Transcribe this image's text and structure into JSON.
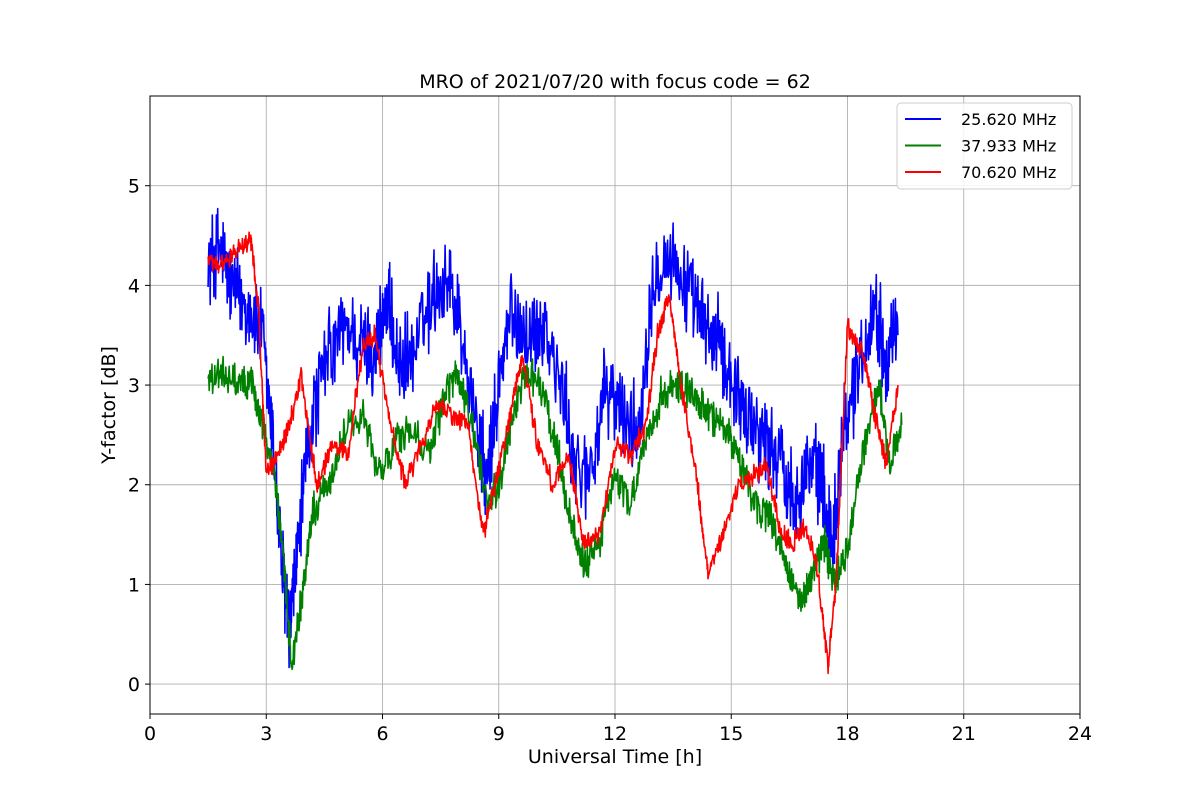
{
  "chart_data": {
    "type": "line",
    "title": "MRO of 2021/07/20 with focus code = 62",
    "xlabel": "Universal Time [h]",
    "ylabel": "Y-factor [dB]",
    "xlim": [
      0,
      24
    ],
    "ylim": [
      -0.3,
      5.9
    ],
    "xticks": [
      0,
      3,
      6,
      9,
      12,
      15,
      18,
      21,
      24
    ],
    "yticks": [
      0,
      1,
      2,
      3,
      4,
      5
    ],
    "grid": true,
    "legend_position": "top-right",
    "series": [
      {
        "name": "25.620 MHz",
        "color": "#0000ff",
        "points": [
          [
            1.5,
            4.2
          ],
          [
            1.8,
            4.4
          ],
          [
            2.1,
            4.0
          ],
          [
            2.5,
            3.8
          ],
          [
            2.9,
            3.5
          ],
          [
            3.2,
            2.3
          ],
          [
            3.45,
            1.0
          ],
          [
            3.6,
            0.5
          ],
          [
            3.8,
            1.3
          ],
          [
            4.1,
            2.5
          ],
          [
            4.5,
            3.2
          ],
          [
            5.0,
            3.6
          ],
          [
            5.5,
            3.4
          ],
          [
            5.8,
            3.3
          ],
          [
            6.1,
            3.9
          ],
          [
            6.4,
            3.2
          ],
          [
            6.8,
            3.3
          ],
          [
            7.3,
            3.9
          ],
          [
            7.7,
            4.1
          ],
          [
            8.0,
            3.6
          ],
          [
            8.5,
            2.4
          ],
          [
            8.7,
            2.0
          ],
          [
            9.0,
            3.0
          ],
          [
            9.3,
            3.7
          ],
          [
            9.8,
            3.5
          ],
          [
            10.2,
            3.6
          ],
          [
            10.7,
            2.8
          ],
          [
            11.0,
            2.1
          ],
          [
            11.4,
            2.2
          ],
          [
            11.8,
            3.0
          ],
          [
            12.2,
            2.7
          ],
          [
            12.6,
            2.5
          ],
          [
            13.0,
            4.2
          ],
          [
            13.5,
            4.3
          ],
          [
            14.0,
            3.8
          ],
          [
            14.3,
            3.6
          ],
          [
            14.7,
            3.4
          ],
          [
            15.1,
            3.0
          ],
          [
            15.4,
            2.7
          ],
          [
            15.8,
            2.5
          ],
          [
            16.2,
            2.3
          ],
          [
            16.6,
            1.9
          ],
          [
            17.0,
            2.2
          ],
          [
            17.3,
            2.1
          ],
          [
            17.6,
            1.4
          ],
          [
            17.9,
            2.6
          ],
          [
            18.3,
            3.2
          ],
          [
            18.7,
            3.8
          ],
          [
            19.0,
            3.3
          ],
          [
            19.3,
            3.5
          ]
        ]
      },
      {
        "name": "37.933 MHz",
        "color": "#008000",
        "points": [
          [
            1.5,
            3.1
          ],
          [
            1.9,
            3.1
          ],
          [
            2.3,
            3.0
          ],
          [
            2.6,
            3.05
          ],
          [
            2.9,
            2.6
          ],
          [
            3.2,
            2.2
          ],
          [
            3.45,
            1.2
          ],
          [
            3.65,
            0.2
          ],
          [
            3.9,
            0.8
          ],
          [
            4.2,
            1.7
          ],
          [
            4.6,
            2.0
          ],
          [
            5.0,
            2.5
          ],
          [
            5.5,
            2.7
          ],
          [
            5.9,
            2.1
          ],
          [
            6.3,
            2.4
          ],
          [
            6.7,
            2.6
          ],
          [
            7.2,
            2.3
          ],
          [
            7.6,
            2.9
          ],
          [
            7.9,
            3.1
          ],
          [
            8.3,
            2.6
          ],
          [
            8.7,
            1.8
          ],
          [
            9.0,
            2.0
          ],
          [
            9.3,
            2.6
          ],
          [
            9.7,
            3.1
          ],
          [
            10.1,
            3.0
          ],
          [
            10.5,
            2.4
          ],
          [
            10.8,
            1.7
          ],
          [
            11.2,
            1.2
          ],
          [
            11.6,
            1.4
          ],
          [
            12.0,
            2.1
          ],
          [
            12.4,
            1.8
          ],
          [
            12.8,
            2.4
          ],
          [
            13.2,
            2.9
          ],
          [
            13.6,
            3.0
          ],
          [
            14.0,
            2.9
          ],
          [
            14.4,
            2.7
          ],
          [
            14.8,
            2.6
          ],
          [
            15.2,
            2.3
          ],
          [
            15.6,
            1.8
          ],
          [
            16.0,
            1.7
          ],
          [
            16.4,
            1.2
          ],
          [
            16.8,
            0.8
          ],
          [
            17.1,
            1.1
          ],
          [
            17.4,
            1.4
          ],
          [
            17.7,
            1.0
          ],
          [
            18.0,
            1.4
          ],
          [
            18.4,
            2.3
          ],
          [
            18.8,
            3.0
          ],
          [
            19.1,
            2.2
          ],
          [
            19.4,
            2.6
          ]
        ]
      },
      {
        "name": "70.620 MHz",
        "color": "#ff0000",
        "points": [
          [
            1.5,
            4.25
          ],
          [
            1.8,
            4.2
          ],
          [
            2.2,
            4.35
          ],
          [
            2.6,
            4.45
          ],
          [
            2.8,
            3.8
          ],
          [
            3.0,
            2.1
          ],
          [
            3.3,
            2.3
          ],
          [
            3.6,
            2.6
          ],
          [
            3.9,
            3.1
          ],
          [
            4.3,
            2.0
          ],
          [
            4.7,
            2.4
          ],
          [
            5.1,
            2.3
          ],
          [
            5.5,
            3.4
          ],
          [
            5.8,
            3.5
          ],
          [
            6.2,
            2.6
          ],
          [
            6.6,
            2.0
          ],
          [
            7.0,
            2.4
          ],
          [
            7.4,
            2.8
          ],
          [
            7.8,
            2.7
          ],
          [
            8.2,
            2.6
          ],
          [
            8.6,
            1.5
          ],
          [
            8.9,
            2.0
          ],
          [
            9.3,
            2.7
          ],
          [
            9.6,
            3.3
          ],
          [
            10.0,
            2.4
          ],
          [
            10.4,
            2.0
          ],
          [
            10.8,
            2.3
          ],
          [
            11.2,
            1.4
          ],
          [
            11.6,
            1.5
          ],
          [
            12.0,
            2.4
          ],
          [
            12.4,
            2.3
          ],
          [
            12.8,
            2.6
          ],
          [
            13.1,
            3.5
          ],
          [
            13.4,
            3.9
          ],
          [
            13.7,
            3.0
          ],
          [
            14.1,
            2.1
          ],
          [
            14.4,
            1.1
          ],
          [
            14.8,
            1.5
          ],
          [
            15.2,
            2.0
          ],
          [
            15.6,
            2.1
          ],
          [
            15.9,
            2.2
          ],
          [
            16.3,
            1.5
          ],
          [
            16.6,
            1.4
          ],
          [
            16.9,
            1.6
          ],
          [
            17.2,
            1.2
          ],
          [
            17.5,
            0.2
          ],
          [
            17.7,
            1.0
          ],
          [
            18.0,
            3.6
          ],
          [
            18.4,
            3.3
          ],
          [
            18.7,
            2.7
          ],
          [
            19.0,
            2.2
          ],
          [
            19.3,
            3.0
          ]
        ]
      }
    ]
  }
}
